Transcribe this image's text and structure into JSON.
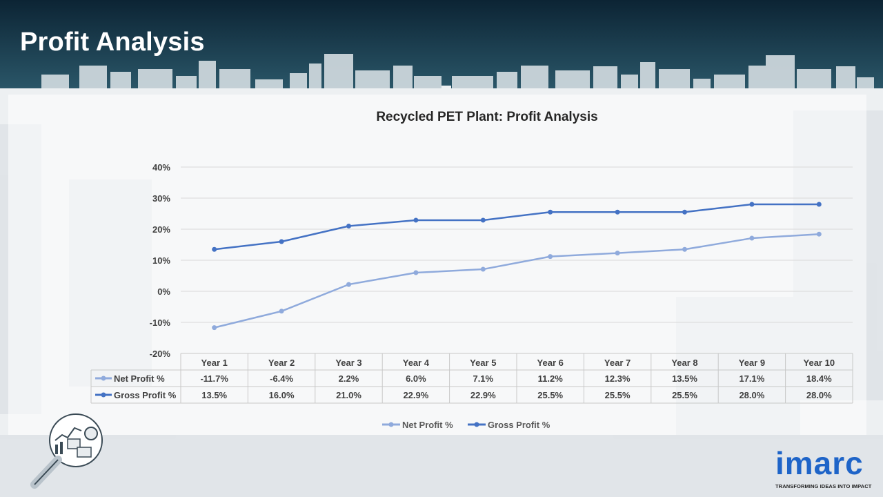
{
  "header": {
    "title": "Profit Analysis"
  },
  "chart_data": {
    "type": "line",
    "title": "Recycled PET Plant: Profit Analysis",
    "categories": [
      "Year 1",
      "Year 2",
      "Year 3",
      "Year 4",
      "Year 5",
      "Year 6",
      "Year 7",
      "Year 8",
      "Year 9",
      "Year 10"
    ],
    "series": [
      {
        "name": "Net Profit %",
        "values": [
          -11.7,
          -6.4,
          2.2,
          6.0,
          7.1,
          11.2,
          12.3,
          13.5,
          17.1,
          18.4
        ],
        "labels": [
          "-11.7%",
          "-6.4%",
          "2.2%",
          "6.0%",
          "7.1%",
          "11.2%",
          "12.3%",
          "13.5%",
          "17.1%",
          "18.4%"
        ],
        "color": "#8faadc"
      },
      {
        "name": "Gross Profit %",
        "values": [
          13.5,
          16.0,
          21.0,
          22.9,
          22.9,
          25.5,
          25.5,
          25.5,
          28.0,
          28.0
        ],
        "labels": [
          "13.5%",
          "16.0%",
          "21.0%",
          "22.9%",
          "22.9%",
          "25.5%",
          "25.5%",
          "25.5%",
          "28.0%",
          "28.0%"
        ],
        "color": "#4472c4"
      }
    ],
    "yticks": [
      40,
      30,
      20,
      10,
      0,
      -10,
      -20
    ],
    "ytick_labels": [
      "40%",
      "30%",
      "20%",
      "10%",
      "0%",
      "-10%",
      "-20%"
    ],
    "ylim": [
      -20,
      40
    ],
    "xlabel": "",
    "ylabel": "",
    "grid": true,
    "legend": "bottom",
    "data_table": true
  },
  "logo": {
    "word": "imarc",
    "tagline": "TRANSFORMING IDEAS INTO IMPACT"
  },
  "colors": {
    "header_dark": "#0f2b3c",
    "header_mid": "#1f4a5e",
    "grid": "#d9d9d9"
  }
}
